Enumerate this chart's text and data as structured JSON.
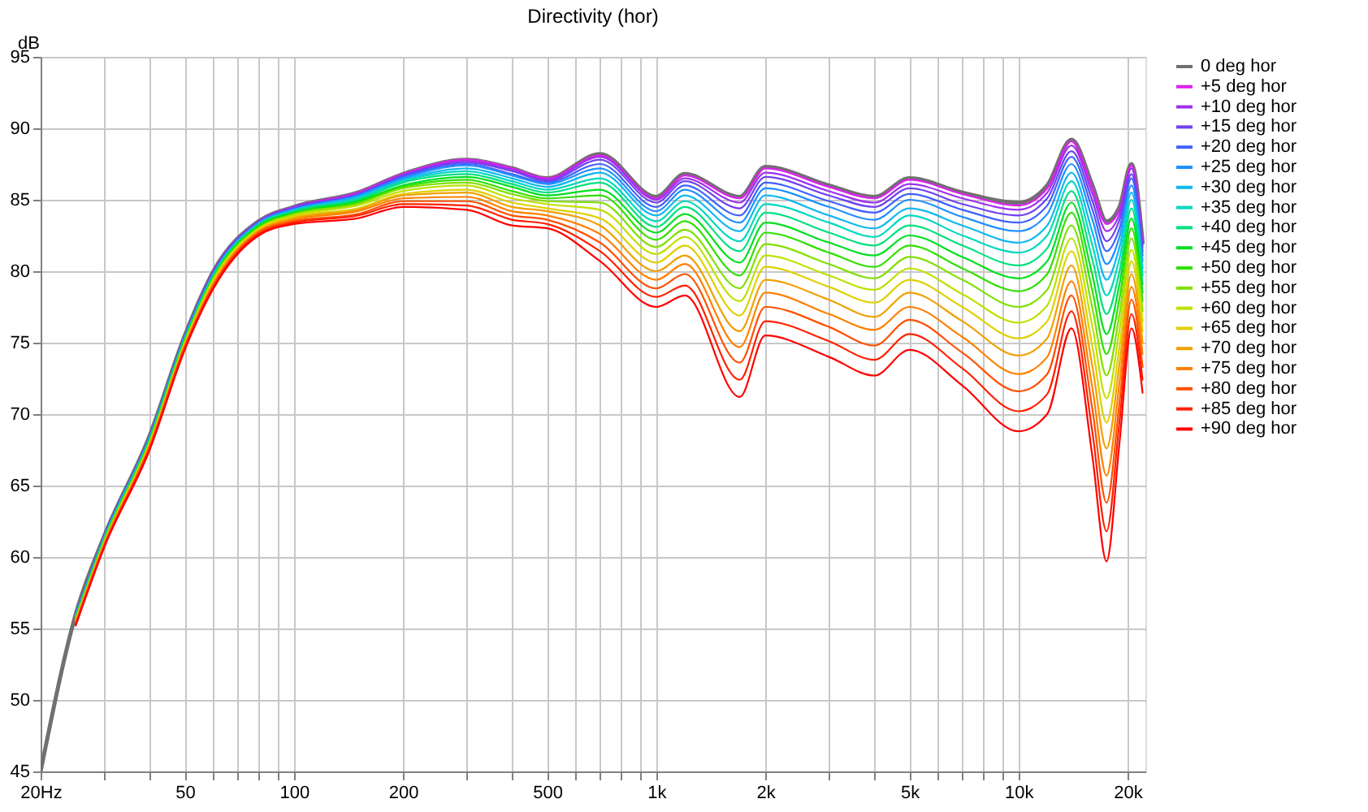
{
  "chart_data": {
    "type": "line",
    "title": "Directivity (hor)",
    "ylabel": "dB",
    "x": [
      20,
      25,
      30,
      40,
      50,
      60,
      80,
      100,
      150,
      200,
      300,
      400,
      500,
      700,
      1000,
      1200,
      1700,
      2000,
      3000,
      4000,
      5000,
      7000,
      10000,
      12000,
      14000,
      16000,
      17500,
      19000,
      20500,
      22000
    ],
    "xlim": [
      20,
      22400
    ],
    "ylim": [
      45,
      95
    ],
    "xticks": [
      {
        "value": 20,
        "label": "20Hz"
      },
      {
        "value": 30,
        "label": null
      },
      {
        "value": 40,
        "label": null
      },
      50,
      {
        "value": 60,
        "label": null
      },
      {
        "value": 70,
        "label": null
      },
      {
        "value": 80,
        "label": null
      },
      {
        "value": 90,
        "label": null
      },
      100,
      200,
      {
        "value": 300,
        "label": null
      },
      {
        "value": 400,
        "label": null
      },
      500,
      {
        "value": 600,
        "label": null
      },
      {
        "value": 700,
        "label": null
      },
      {
        "value": 800,
        "label": null
      },
      {
        "value": 900,
        "label": null
      },
      {
        "value": 1000,
        "label": "1k"
      },
      {
        "value": 2000,
        "label": "2k"
      },
      {
        "value": 3000,
        "label": null
      },
      {
        "value": 4000,
        "label": null
      },
      {
        "value": 5000,
        "label": "5k"
      },
      {
        "value": 6000,
        "label": null
      },
      {
        "value": 7000,
        "label": null
      },
      {
        "value": 8000,
        "label": null
      },
      {
        "value": 9000,
        "label": null
      },
      {
        "value": 10000,
        "label": "10k"
      },
      {
        "value": 20000,
        "label": "20k"
      }
    ],
    "yticks": [
      45,
      50,
      55,
      60,
      65,
      70,
      75,
      80,
      85,
      90,
      95
    ],
    "log": "x",
    "grid": true,
    "legend": "right",
    "marker": "none",
    "line_style": "solid",
    "series": [
      {
        "name": "0 deg hor",
        "color": "#707070",
        "values": [
          45,
          56,
          61.5,
          68.5,
          75.5,
          80,
          83.5,
          84.5,
          85.5,
          86.8,
          87.8,
          87.2,
          86.5,
          88.2,
          85.2,
          86.8,
          85.2,
          87.3,
          86.0,
          85.2,
          86.5,
          85.5,
          84.8,
          86.0,
          89.2,
          86.0,
          83.5,
          84.5,
          87.5,
          82.0
        ]
      },
      {
        "name": "+5 deg hor",
        "color": "#e020f0",
        "values": [
          null,
          null,
          null,
          null,
          null,
          null,
          83.5,
          84.5,
          85.5,
          86.8,
          87.8,
          87.2,
          86.5,
          88.1,
          85.1,
          86.7,
          85.1,
          87.2,
          85.9,
          85.1,
          86.4,
          85.4,
          84.6,
          85.8,
          89.1,
          85.8,
          83.3,
          84.3,
          87.4,
          81.9
        ]
      },
      {
        "name": "+10 deg hor",
        "color": "#a030f0",
        "values": [
          null,
          56,
          61.5,
          68.5,
          75.5,
          80,
          83.5,
          84.5,
          85.4,
          86.7,
          87.7,
          87.1,
          86.4,
          88.0,
          85.0,
          86.5,
          84.8,
          86.9,
          85.6,
          84.8,
          86.1,
          85.1,
          84.3,
          85.5,
          88.8,
          85.4,
          82.8,
          84.0,
          87.2,
          81.7
        ]
      },
      {
        "name": "+15 deg hor",
        "color": "#7040f0",
        "values": [
          null,
          56,
          61.5,
          68.4,
          75.4,
          79.9,
          83.4,
          84.4,
          85.4,
          86.7,
          87.6,
          87.0,
          86.3,
          87.8,
          84.8,
          86.3,
          84.4,
          86.6,
          85.3,
          84.5,
          85.8,
          84.7,
          83.9,
          85.1,
          88.4,
          84.9,
          82.1,
          83.6,
          86.8,
          81.4
        ]
      },
      {
        "name": "+20 deg hor",
        "color": "#4060ff",
        "values": [
          null,
          55.9,
          61.4,
          68.4,
          75.4,
          79.9,
          83.4,
          84.4,
          85.3,
          86.6,
          87.5,
          86.8,
          86.2,
          87.5,
          84.5,
          86.0,
          83.9,
          86.2,
          84.9,
          84.1,
          85.4,
          84.3,
          83.4,
          84.6,
          88.0,
          84.3,
          81.4,
          83.0,
          86.5,
          81.1
        ]
      },
      {
        "name": "+25 deg hor",
        "color": "#2090ff",
        "values": [
          null,
          55.9,
          61.4,
          68.4,
          75.4,
          79.8,
          83.4,
          84.3,
          85.3,
          86.5,
          87.4,
          86.7,
          86.1,
          87.2,
          84.2,
          85.7,
          83.4,
          85.8,
          84.5,
          83.6,
          85.0,
          83.8,
          82.8,
          84.0,
          87.5,
          83.6,
          80.5,
          82.4,
          86.0,
          80.7
        ]
      },
      {
        "name": "+30 deg hor",
        "color": "#10b8f0",
        "values": [
          null,
          55.9,
          61.4,
          68.3,
          75.3,
          79.8,
          83.3,
          84.3,
          85.2,
          86.4,
          87.2,
          86.5,
          85.9,
          86.9,
          83.9,
          85.3,
          82.8,
          85.3,
          83.9,
          83.0,
          84.4,
          83.2,
          82.0,
          83.2,
          86.9,
          82.7,
          79.4,
          81.7,
          85.5,
          80.2
        ]
      },
      {
        "name": "+35 deg hor",
        "color": "#00d8c0",
        "values": [
          null,
          55.8,
          61.3,
          68.3,
          75.3,
          79.7,
          83.3,
          84.2,
          85.1,
          86.3,
          87.0,
          86.3,
          85.7,
          86.5,
          83.5,
          84.9,
          82.1,
          84.7,
          83.4,
          82.4,
          83.9,
          82.5,
          81.3,
          82.5,
          86.3,
          81.8,
          78.3,
          80.9,
          85.0,
          79.7
        ]
      },
      {
        "name": "+40 deg hor",
        "color": "#00e080",
        "values": [
          null,
          55.8,
          61.3,
          68.2,
          75.2,
          79.7,
          83.2,
          84.2,
          85.0,
          86.2,
          86.8,
          86.1,
          85.5,
          86.2,
          83.1,
          84.5,
          81.4,
          84.1,
          82.7,
          81.8,
          83.2,
          81.8,
          80.4,
          81.6,
          85.6,
          80.8,
          77.0,
          80.0,
          84.4,
          79.1
        ]
      },
      {
        "name": "+45 deg hor",
        "color": "#00e020",
        "values": [
          null,
          55.7,
          61.2,
          68.2,
          75.2,
          79.6,
          83.2,
          84.1,
          84.9,
          86.0,
          86.6,
          85.9,
          85.3,
          85.7,
          82.7,
          84.0,
          80.6,
          83.4,
          82.0,
          81.1,
          82.5,
          81.0,
          79.5,
          80.7,
          84.8,
          79.7,
          75.6,
          79.1,
          83.7,
          78.5
        ]
      },
      {
        "name": "+50 deg hor",
        "color": "#30e000",
        "values": [
          null,
          55.7,
          61.2,
          68.1,
          75.1,
          79.5,
          83.1,
          84.0,
          84.8,
          85.9,
          86.4,
          85.6,
          85.1,
          85.3,
          82.2,
          83.5,
          79.7,
          82.7,
          81.3,
          80.3,
          81.8,
          80.2,
          78.6,
          79.8,
          84.1,
          78.6,
          74.2,
          78.1,
          83.0,
          77.9
        ]
      },
      {
        "name": "+55 deg hor",
        "color": "#80e000",
        "values": [
          null,
          55.6,
          61.1,
          68.0,
          75.0,
          79.5,
          83.0,
          84.0,
          84.7,
          85.8,
          86.2,
          85.4,
          84.9,
          84.8,
          81.7,
          82.9,
          78.8,
          81.9,
          80.5,
          79.5,
          81.0,
          79.4,
          77.5,
          78.7,
          83.2,
          77.4,
          72.7,
          77.0,
          82.3,
          77.2
        ]
      },
      {
        "name": "+60 deg hor",
        "color": "#c0e000",
        "values": [
          null,
          55.6,
          61.1,
          68.0,
          75.0,
          79.4,
          83.0,
          83.9,
          84.6,
          85.6,
          86.0,
          85.1,
          84.7,
          84.3,
          81.2,
          82.4,
          77.9,
          81.1,
          79.7,
          78.7,
          80.2,
          78.4,
          76.4,
          77.6,
          82.3,
          76.1,
          71.1,
          75.9,
          81.5,
          76.5
        ]
      },
      {
        "name": "+65 deg hor",
        "color": "#e0d000",
        "values": [
          null,
          55.5,
          61.0,
          67.9,
          74.9,
          79.3,
          82.9,
          83.8,
          84.4,
          85.4,
          85.7,
          84.8,
          84.4,
          83.7,
          80.6,
          81.8,
          76.9,
          80.3,
          78.9,
          77.8,
          79.4,
          77.5,
          75.3,
          76.5,
          81.4,
          74.7,
          69.4,
          74.7,
          80.7,
          75.8
        ]
      },
      {
        "name": "+70 deg hor",
        "color": "#f0a000",
        "values": [
          null,
          55.5,
          61.0,
          67.8,
          74.8,
          79.2,
          82.8,
          83.7,
          84.3,
          85.3,
          85.5,
          84.5,
          84.2,
          83.2,
          80.0,
          81.1,
          75.8,
          79.4,
          78.0,
          76.8,
          78.5,
          76.5,
          74.1,
          75.3,
          80.4,
          73.3,
          67.6,
          73.5,
          79.8,
          75.0
        ]
      },
      {
        "name": "+75 deg hor",
        "color": "#ff8000",
        "values": [
          null,
          55.4,
          60.9,
          67.8,
          74.8,
          79.1,
          82.8,
          83.6,
          84.2,
          85.1,
          85.2,
          84.2,
          83.9,
          82.6,
          79.4,
          80.5,
          74.7,
          78.5,
          77.0,
          75.9,
          77.5,
          75.4,
          72.8,
          74.0,
          79.3,
          71.8,
          65.7,
          72.2,
          78.9,
          74.2
        ]
      },
      {
        "name": "+80 deg hor",
        "color": "#ff5000",
        "values": [
          null,
          55.3,
          60.8,
          67.7,
          74.7,
          79.0,
          82.7,
          83.5,
          84.0,
          84.9,
          84.9,
          83.9,
          83.6,
          82.0,
          78.8,
          79.8,
          73.6,
          77.5,
          76.1,
          74.8,
          76.6,
          74.3,
          71.6,
          72.8,
          78.3,
          70.3,
          63.8,
          70.8,
          78.0,
          73.3
        ]
      },
      {
        "name": "+85 deg hor",
        "color": "#ff2000",
        "values": [
          null,
          55.3,
          60.8,
          67.6,
          74.6,
          78.9,
          82.6,
          83.4,
          83.9,
          84.7,
          84.6,
          83.6,
          83.3,
          81.4,
          78.2,
          79.0,
          72.4,
          76.5,
          75.1,
          73.8,
          75.6,
          73.2,
          70.2,
          71.4,
          77.2,
          68.7,
          61.8,
          69.5,
          77.0,
          72.4
        ]
      },
      {
        "name": "+90 deg hor",
        "color": "#ff0000",
        "values": [
          null,
          55.2,
          60.7,
          67.5,
          74.5,
          78.8,
          82.5,
          83.3,
          83.7,
          84.5,
          84.3,
          83.2,
          83.0,
          80.7,
          77.5,
          78.3,
          71.2,
          75.5,
          74.0,
          72.7,
          74.5,
          72.0,
          68.8,
          70.0,
          76.0,
          67.0,
          59.7,
          68.0,
          76.0,
          71.5
        ]
      }
    ]
  }
}
